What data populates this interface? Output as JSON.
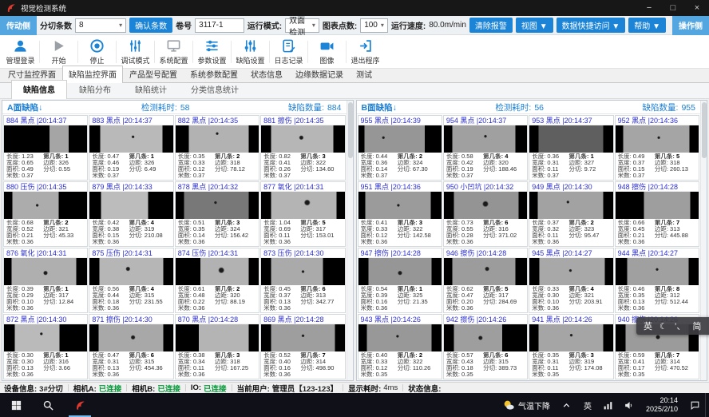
{
  "window": {
    "title": "视觉检测系统",
    "controls": [
      "−",
      "□",
      "×"
    ]
  },
  "ui": {
    "caret": "▾"
  },
  "toolbar": {
    "left_side_button": "传动侧",
    "right_side_button": "操作侧",
    "slit_count_label": "分切条数",
    "slit_count_value": "8",
    "confirm_button": "确认条数",
    "roll_label": "卷号",
    "roll_value": "3117-1",
    "run_mode_label": "运行模式:",
    "run_mode_value": "双面检测",
    "chart_points_label": "图表点数:",
    "chart_points_value": "100",
    "speed_label": "运行速度:",
    "speed_value": "80.0m/min",
    "clear_alarm_button": "清除报警",
    "view_menu": "视图 ▼",
    "data_access_menu": "数据快捷访问 ▼",
    "help_menu": "帮助 ▼"
  },
  "actions": [
    {
      "name": "admin-login",
      "label": "管理登录",
      "icon": "user-icon",
      "color": "blue"
    },
    {
      "name": "start",
      "label": "开始",
      "icon": "play-icon",
      "color": "gray"
    },
    {
      "name": "stop",
      "label": "停止",
      "icon": "stop-icon",
      "color": "blue"
    },
    {
      "name": "debug-mode",
      "label": "调试模式",
      "icon": "debug-sliders-icon",
      "color": "blue"
    },
    {
      "name": "system-config",
      "label": "系统配置",
      "icon": "monitor-icon",
      "color": "gray"
    },
    {
      "name": "param-settings",
      "label": "参数设置",
      "icon": "params-sliders-icon",
      "color": "blue"
    },
    {
      "name": "defect-settings",
      "label": "缺陷设置",
      "icon": "defect-sliders-icon",
      "color": "blue"
    },
    {
      "name": "log-record",
      "label": "日志记录",
      "icon": "log-icon",
      "color": "blue"
    },
    {
      "name": "image",
      "label": "图像",
      "icon": "camera-icon",
      "color": "blue"
    },
    {
      "name": "exit-program",
      "label": "退出程序",
      "icon": "exit-icon",
      "color": "blue"
    }
  ],
  "main_tabs": [
    {
      "name": "size-monitor",
      "label": "尺寸监控界面",
      "active": false
    },
    {
      "name": "defect-monitor",
      "label": "缺陷监控界面",
      "active": true
    },
    {
      "name": "product-model-config",
      "label": "产品型号配置",
      "active": false
    },
    {
      "name": "system-param-config",
      "label": "系统参数配置",
      "active": false
    },
    {
      "name": "status-info",
      "label": "状态信息",
      "active": false
    },
    {
      "name": "edge-data-record",
      "label": "边缘数据记录",
      "active": false
    },
    {
      "name": "test",
      "label": "测试",
      "active": false
    }
  ],
  "sub_tabs": [
    {
      "name": "defect-info",
      "label": "缺陷信息",
      "active": true
    },
    {
      "name": "defect-distribution",
      "label": "缺陷分布",
      "active": false
    },
    {
      "name": "defect-stats",
      "label": "缺陷统计",
      "active": false
    },
    {
      "name": "class-info-stats",
      "label": "分类信息统计",
      "active": false
    }
  ],
  "card_labels": [
    "长度:",
    "宽度:",
    "面积:",
    "米数:",
    "第几条:",
    "边距:",
    "分切:"
  ],
  "panels": [
    {
      "side": "a",
      "title": "A面缺陷↓",
      "time_label": "检测耗时:",
      "time_value": "58",
      "count_label": "缺陷数量:",
      "count_value": "884",
      "cards": [
        {
          "n": "884",
          "t": "黑点",
          "tm": "20:14:37",
          "d": [
            "1.23",
            "0.65",
            "0.49",
            "0.37",
            "1",
            "326",
            "0.55"
          ],
          "img": [
            55,
            22,
            165,
            0,
            0,
            0
          ]
        },
        {
          "n": "883",
          "t": "黑点",
          "tm": "20:14:37",
          "d": [
            "0.47",
            "0.46",
            "0.19",
            "0.37",
            "1",
            "326",
            "6.49"
          ],
          "img": [
            13,
            13,
            185,
            52,
            42,
            2
          ]
        },
        {
          "n": "882",
          "t": "黑点",
          "tm": "20:14:35",
          "d": [
            "0.35",
            "0.33",
            "0.12",
            "0.37",
            "2",
            "318",
            "78.12"
          ],
          "img": [
            16,
            12,
            178,
            50,
            30,
            2
          ]
        },
        {
          "n": "881",
          "t": "擦伤",
          "tm": "20:14:35",
          "d": [
            "0.82",
            "0.41",
            "0.26",
            "0.37",
            "3",
            "322",
            "134.60"
          ],
          "img": [
            12,
            14,
            182,
            48,
            45,
            3
          ]
        },
        {
          "n": "880",
          "t": "压伤",
          "tm": "20:14:35",
          "d": [
            "0.68",
            "0.52",
            "0.21",
            "0.36",
            "2",
            "321",
            "45.33"
          ],
          "img": [
            10,
            34,
            172,
            40,
            50,
            2
          ]
        },
        {
          "n": "879",
          "t": "黑点",
          "tm": "20:14:33",
          "d": [
            "0.42",
            "0.38",
            "0.15",
            "0.36",
            "4",
            "319",
            "210.08"
          ],
          "img": [
            14,
            30,
            188,
            0,
            0,
            0
          ]
        },
        {
          "n": "878",
          "t": "黑点",
          "tm": "20:14:32",
          "d": [
            "0.51",
            "0.35",
            "0.14",
            "0.36",
            "3",
            "324",
            "156.42"
          ],
          "img": [
            10,
            12,
            120,
            48,
            40,
            2
          ]
        },
        {
          "n": "877",
          "t": "氧化",
          "tm": "20:14:31",
          "d": [
            "1.04",
            "0.69",
            "0.11",
            "0.36",
            "5",
            "317",
            "153.01"
          ],
          "img": [
            12,
            10,
            180,
            55,
            40,
            4
          ]
        },
        {
          "n": "876",
          "t": "氧化",
          "tm": "20:14:31",
          "d": [
            "0.39",
            "0.29",
            "0.10",
            "0.36",
            "1",
            "317",
            "12.84"
          ],
          "img": [
            9,
            13,
            175,
            50,
            55,
            3
          ]
        },
        {
          "n": "875",
          "t": "压伤",
          "tm": "20:14:31",
          "d": [
            "0.56",
            "0.44",
            "0.18",
            "0.36",
            "4",
            "315",
            "231.55"
          ],
          "img": [
            12,
            12,
            182,
            46,
            40,
            3
          ]
        },
        {
          "n": "874",
          "t": "压伤",
          "tm": "20:14:31",
          "d": [
            "0.61",
            "0.48",
            "0.22",
            "0.36",
            "2",
            "320",
            "88.19"
          ],
          "img": [
            30,
            12,
            178,
            55,
            45,
            4
          ]
        },
        {
          "n": "873",
          "t": "压伤",
          "tm": "20:14:30",
          "d": [
            "0.45",
            "0.37",
            "0.13",
            "0.36",
            "6",
            "313",
            "342.77"
          ],
          "img": [
            12,
            26,
            170,
            50,
            50,
            2
          ]
        },
        {
          "n": "872",
          "t": "黑点",
          "tm": "20:14:30",
          "d": [
            "0.30",
            "0.30",
            "0.13",
            "0.36",
            "1",
            "316",
            "3.66"
          ],
          "img": [
            13,
            33,
            186,
            45,
            35,
            2
          ]
        },
        {
          "n": "871",
          "t": "擦伤",
          "tm": "20:14:30",
          "d": [
            "0.47",
            "0.31",
            "0.13",
            "0.36",
            "6",
            "315",
            "454.36"
          ],
          "img": [
            11,
            12,
            168,
            52,
            48,
            3
          ]
        },
        {
          "n": "870",
          "t": "黑点",
          "tm": "20:14:28",
          "d": [
            "0.38",
            "0.34",
            "0.11",
            "0.36",
            "3",
            "318",
            "167.25"
          ],
          "img": [
            28,
            12,
            180,
            0,
            0,
            0
          ]
        },
        {
          "n": "869",
          "t": "黑点",
          "tm": "20:14:28",
          "d": [
            "0.52",
            "0.40",
            "0.16",
            "0.36",
            "7",
            "314",
            "498.90"
          ],
          "img": [
            12,
            12,
            158,
            50,
            42,
            2
          ]
        }
      ]
    },
    {
      "side": "b",
      "title": "B面缺陷↓",
      "time_label": "检测耗时:",
      "time_value": "56",
      "count_label": "缺陷数量:",
      "count_value": "955",
      "cards": [
        {
          "n": "955",
          "t": "黑点",
          "tm": "20:14:39",
          "d": [
            "0.44",
            "0.36",
            "0.14",
            "0.37",
            "2",
            "324",
            "67.30"
          ],
          "img": [
            7,
            20,
            150,
            30,
            45,
            2
          ]
        },
        {
          "n": "954",
          "t": "黑点",
          "tm": "20:14:37",
          "d": [
            "0.58",
            "0.42",
            "0.19",
            "0.37",
            "4",
            "320",
            "188.46"
          ],
          "img": [
            10,
            14,
            160,
            50,
            40,
            2
          ]
        },
        {
          "n": "953",
          "t": "黑点",
          "tm": "20:14:37",
          "d": [
            "0.36",
            "0.31",
            "0.11",
            "0.37",
            "1",
            "327",
            "9.72"
          ],
          "img": [
            11,
            12,
            95,
            0,
            0,
            0
          ]
        },
        {
          "n": "952",
          "t": "黑点",
          "tm": "20:14:36",
          "d": [
            "0.49",
            "0.37",
            "0.15",
            "0.37",
            "5",
            "318",
            "260.13"
          ],
          "img": [
            9,
            11,
            165,
            52,
            45,
            2
          ]
        },
        {
          "n": "951",
          "t": "黑点",
          "tm": "20:14:36",
          "d": [
            "0.41",
            "0.33",
            "0.12",
            "0.36",
            "3",
            "322",
            "142.58"
          ],
          "img": [
            8,
            13,
            155,
            48,
            50,
            2
          ]
        },
        {
          "n": "950",
          "t": "小凹坑",
          "tm": "20:14:32",
          "d": [
            "0.73",
            "0.55",
            "0.28",
            "0.36",
            "6",
            "316",
            "371.02"
          ],
          "img": [
            12,
            10,
            148,
            50,
            45,
            4
          ]
        },
        {
          "n": "949",
          "t": "黑点",
          "tm": "20:14:30",
          "d": [
            "0.37",
            "0.32",
            "0.11",
            "0.36",
            "2",
            "323",
            "95.47"
          ],
          "img": [
            10,
            12,
            162,
            46,
            38,
            2
          ]
        },
        {
          "n": "948",
          "t": "擦伤",
          "tm": "20:14:28",
          "d": [
            "0.66",
            "0.45",
            "0.21",
            "0.36",
            "7",
            "313",
            "445.88"
          ],
          "img": [
            34,
            10,
            158,
            0,
            0,
            0
          ]
        },
        {
          "n": "947",
          "t": "擦伤",
          "tm": "20:14:28",
          "d": [
            "0.54",
            "0.39",
            "0.16",
            "0.36",
            "1",
            "325",
            "21.35"
          ],
          "img": [
            12,
            12,
            150,
            50,
            55,
            3
          ]
        },
        {
          "n": "946",
          "t": "擦伤",
          "tm": "20:14:28",
          "d": [
            "0.62",
            "0.47",
            "0.20",
            "0.36",
            "5",
            "317",
            "284.69"
          ],
          "img": [
            10,
            14,
            156,
            52,
            40,
            3
          ]
        },
        {
          "n": "945",
          "t": "黑点",
          "tm": "20:14:27",
          "d": [
            "0.33",
            "0.30",
            "0.10",
            "0.36",
            "4",
            "321",
            "203.91"
          ],
          "img": [
            12,
            10,
            168,
            49,
            46,
            2
          ]
        },
        {
          "n": "944",
          "t": "黑点",
          "tm": "20:14:27",
          "d": [
            "0.46",
            "0.35",
            "0.13",
            "0.36",
            "8",
            "312",
            "512.44"
          ],
          "img": [
            14,
            12,
            160,
            50,
            42,
            2
          ]
        },
        {
          "n": "943",
          "t": "黑点",
          "tm": "20:14:26",
          "d": [
            "0.40",
            "0.33",
            "0.12",
            "0.35",
            "2",
            "322",
            "110.26"
          ],
          "img": [
            10,
            12,
            152,
            47,
            44,
            2
          ]
        },
        {
          "n": "942",
          "t": "擦伤",
          "tm": "20:14:26",
          "d": [
            "0.57",
            "0.43",
            "0.18",
            "0.35",
            "6",
            "315",
            "389.73"
          ],
          "img": [
            12,
            30,
            158,
            44,
            50,
            3
          ]
        },
        {
          "n": "941",
          "t": "黑点",
          "tm": "20:14:26",
          "d": [
            "0.35",
            "0.31",
            "0.11",
            "0.35",
            "3",
            "319",
            "174.08"
          ],
          "img": [
            11,
            12,
            165,
            50,
            40,
            2
          ]
        },
        {
          "n": "940",
          "t": "擦伤",
          "tm": "20:14:26",
          "d": [
            "0.59",
            "0.41",
            "0.17",
            "0.35",
            "7",
            "314",
            "470.52"
          ],
          "img": [
            12,
            12,
            155,
            51,
            47,
            3
          ]
        }
      ]
    }
  ],
  "status_bar": {
    "segments": [
      {
        "label": "设备信息:",
        "value": "3#分切",
        "style": "bold"
      },
      {
        "label": "相机A:",
        "value": "已连接",
        "style": "green"
      },
      {
        "label": "相机B:",
        "value": "已连接",
        "style": "green"
      },
      {
        "label": "IO:",
        "value": "已连接",
        "style": "green"
      },
      {
        "label": "当前用户:",
        "value": "管理员【123-123】",
        "style": "bold"
      },
      {
        "label": "显示耗时:",
        "value": "4ms",
        "style": ""
      },
      {
        "label": "状态信息:",
        "value": "",
        "style": ""
      }
    ]
  },
  "ime_bar": {
    "items": [
      "英",
      "☾",
      "’、",
      "简",
      "☺",
      "⚙"
    ]
  },
  "taskbar": {
    "weather_text": "气温下降",
    "lang_indicator": "英",
    "time": "20:14",
    "date": "2025/2/10"
  },
  "colors": {
    "accent_blue": "#1b84d6",
    "header_text": "#1a7fd4",
    "card_title": "#2b2fd0",
    "connected_green": "#0a9a3c"
  }
}
